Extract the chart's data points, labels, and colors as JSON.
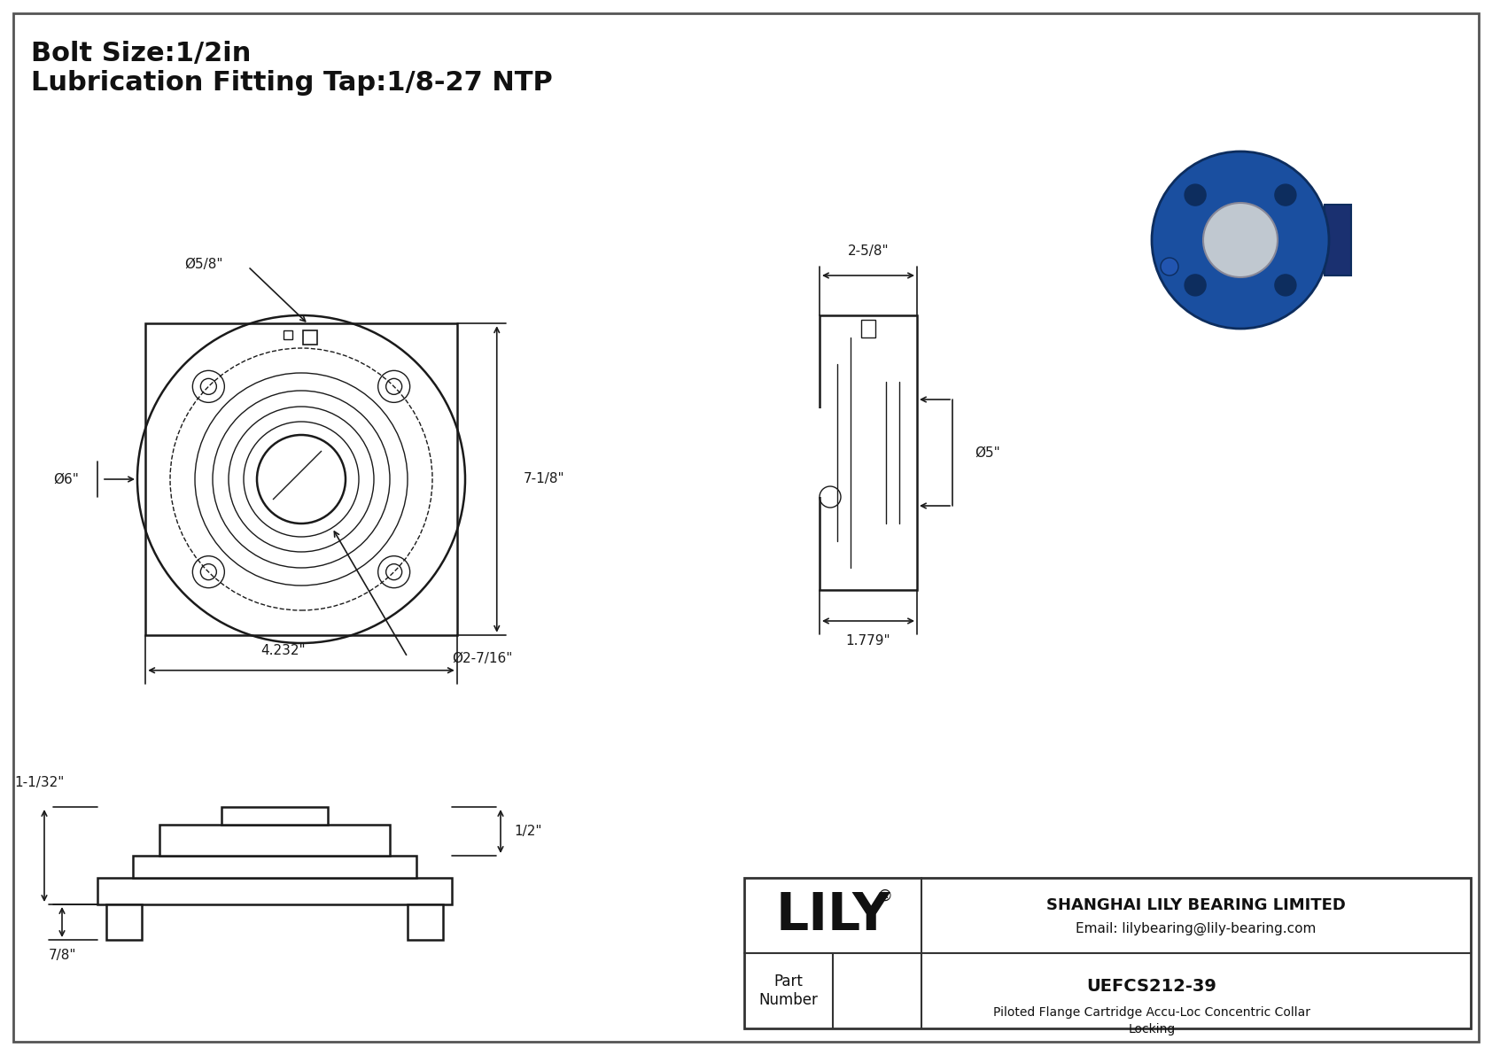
{
  "title_line1": "Bolt Size:1/2in",
  "title_line2": "Lubrication Fitting Tap:1/8-27 NTP",
  "bg_color": "#ffffff",
  "line_color": "#1a1a1a",
  "dim_color": "#1a1a1a",
  "border_color": "#333333",
  "company_name": "SHANGHAI LILY BEARING LIMITED",
  "company_email": "Email: lilybearing@lily-bearing.com",
  "part_label": "Part\nNumber",
  "part_number": "UEFCS212-39",
  "part_desc": "Piloted Flange Cartridge Accu-Loc Concentric Collar\nLocking",
  "lily_text": "LILY",
  "dims": {
    "bolt_circle_dia": "Ø5/8\"",
    "outer_dia": "Ø6\"",
    "height_dim": "7-1/8\"",
    "bolt_spacing": "4.232\"",
    "inner_dia": "Ø2-7/16\"",
    "side_width": "2-5/8\"",
    "side_height": "Ø5\"",
    "side_depth": "1.779\"",
    "bot_dim1": "1-1/32\"",
    "bot_dim2": "1/2\"",
    "bot_dim3": "7/8\""
  }
}
